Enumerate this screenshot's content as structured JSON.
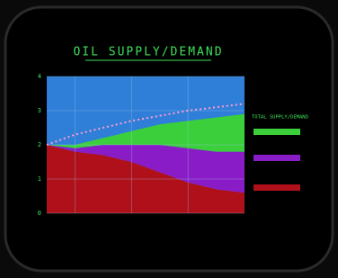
{
  "chart_data": {
    "type": "stacked-area",
    "title": "OIL SUPPLY/DEMAND",
    "categories": [
      null,
      null,
      null,
      null,
      null,
      null,
      null,
      null
    ],
    "ylim": [
      0,
      4
    ],
    "yticks": [
      0,
      1,
      2,
      3,
      4
    ],
    "grid": true,
    "background": "#2f7fd8",
    "series": [
      {
        "color": "#b0101a",
        "values": [
          2.0,
          1.8,
          1.7,
          1.5,
          1.2,
          0.9,
          0.7,
          0.6
        ]
      },
      {
        "color": "#8a1cc8",
        "values": [
          0.0,
          0.1,
          0.3,
          0.5,
          0.8,
          1.0,
          1.1,
          1.2
        ]
      },
      {
        "color": "#3bd03b",
        "values": [
          0.0,
          0.1,
          0.2,
          0.4,
          0.6,
          0.8,
          1.0,
          1.1
        ]
      }
    ],
    "line": {
      "name": "TOTAL SUPPLY/DEMAND",
      "color": "#ff9ad0",
      "values": [
        2.0,
        2.3,
        2.5,
        2.7,
        2.85,
        3.0,
        3.1,
        3.2
      ]
    }
  }
}
